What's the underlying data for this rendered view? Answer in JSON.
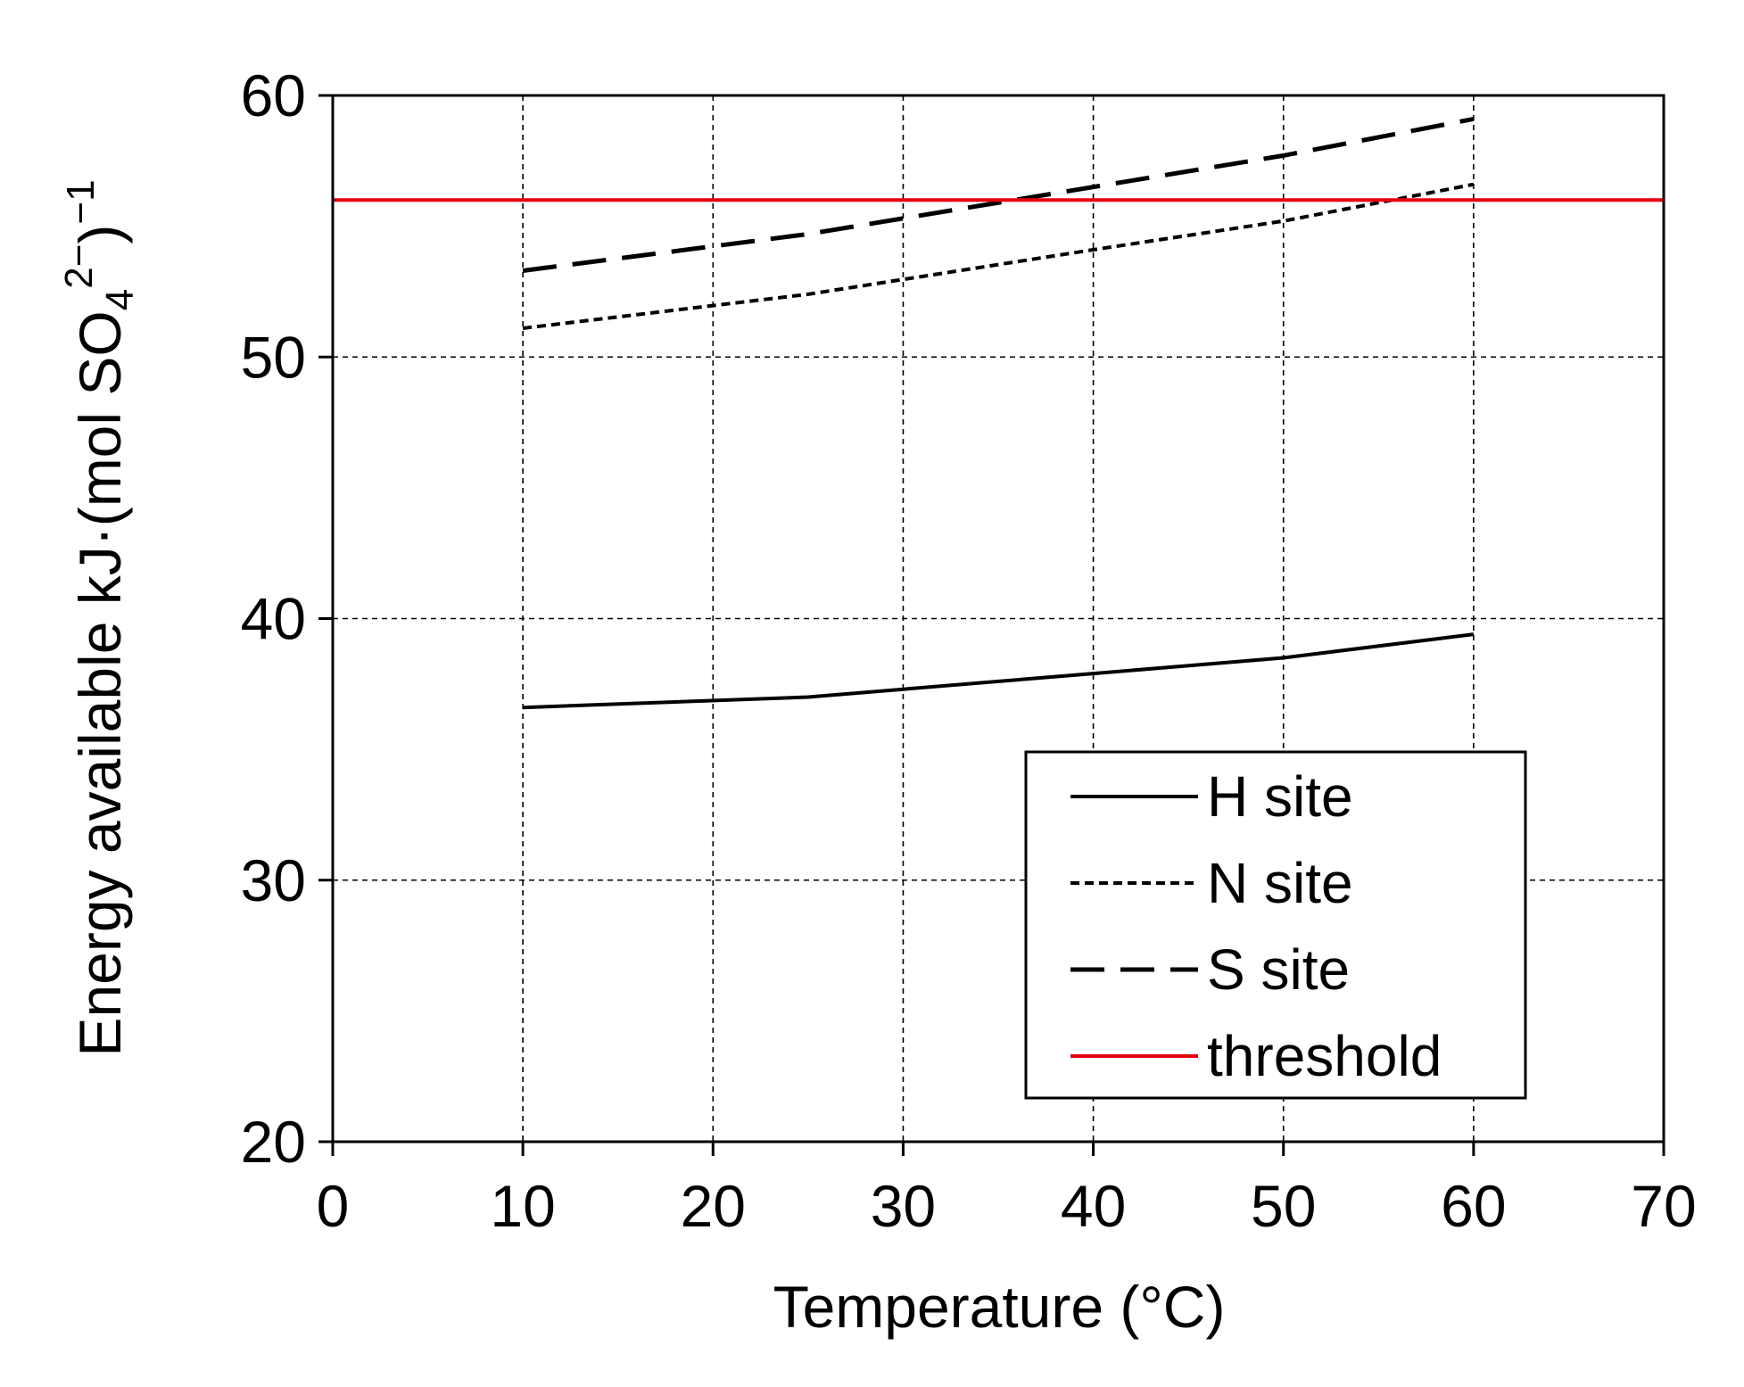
{
  "chart_data": {
    "type": "line",
    "title": "",
    "xlabel": "Temperature (°C)",
    "ylabel": "Energy available kJ·(mol SO₄²⁻)⁻¹",
    "ylabel_parts": {
      "main": "Energy available  kJ·(mol SO",
      "sub": "4",
      "sup": "2−",
      "close": ")",
      "sup2": "−1"
    },
    "xlim": [
      0,
      70
    ],
    "ylim": [
      20,
      60
    ],
    "xticks": [
      0,
      10,
      20,
      30,
      40,
      50,
      60,
      70
    ],
    "yticks": [
      20,
      30,
      40,
      50,
      60
    ],
    "grid": true,
    "legend_position": "bottom-right",
    "series": [
      {
        "name": "H site",
        "style": "solid",
        "color": "#000000",
        "x": [
          10,
          25,
          40,
          50,
          60
        ],
        "y": [
          36.6,
          37.0,
          37.9,
          38.5,
          39.4
        ]
      },
      {
        "name": "N site",
        "style": "dotted",
        "color": "#000000",
        "x": [
          10,
          25,
          40,
          50,
          60
        ],
        "y": [
          51.1,
          52.4,
          54.1,
          55.2,
          56.6
        ]
      },
      {
        "name": "S site",
        "style": "dashed",
        "color": "#000000",
        "x": [
          10,
          25,
          40,
          50,
          60
        ],
        "y": [
          53.3,
          54.7,
          56.5,
          57.7,
          59.1
        ]
      },
      {
        "name": "threshold",
        "style": "solid",
        "color": "#e8000b",
        "x": [
          0,
          70
        ],
        "y": [
          56,
          56
        ]
      }
    ]
  }
}
